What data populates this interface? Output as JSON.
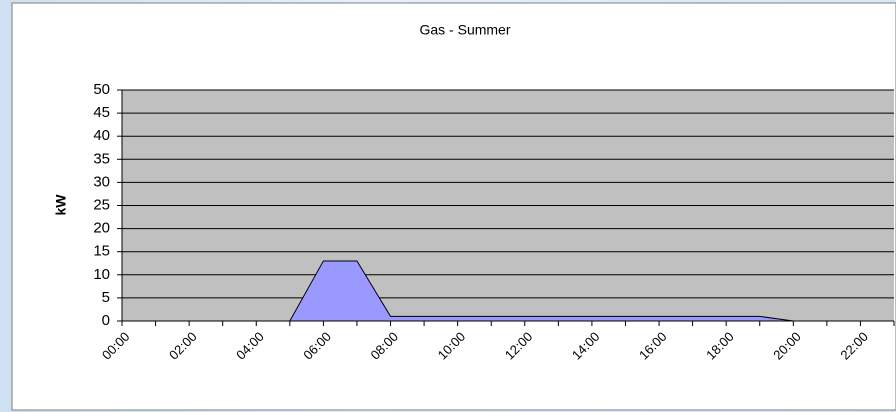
{
  "chart_data": {
    "type": "area",
    "title": "Gas - Summer",
    "ylabel": "kW",
    "categories": [
      "00:00",
      null,
      "02:00",
      null,
      "04:00",
      null,
      "06:00",
      null,
      "08:00",
      null,
      "10:00",
      null,
      "12:00",
      null,
      "14:00",
      null,
      "16:00",
      null,
      "18:00",
      null,
      "20:00",
      null,
      "22:00",
      null
    ],
    "series": [
      {
        "name": "Gas",
        "color": "#9999ff",
        "values": [
          0,
          0,
          0,
          0,
          0,
          0,
          13,
          13,
          1,
          1,
          1,
          1,
          1,
          1,
          1,
          1,
          1,
          1,
          1,
          1,
          0,
          0,
          0,
          0
        ]
      }
    ],
    "ylim": [
      0,
      50
    ],
    "yticks": [
      0,
      5,
      10,
      15,
      20,
      25,
      30,
      35,
      40,
      45,
      50
    ],
    "grid": true
  }
}
